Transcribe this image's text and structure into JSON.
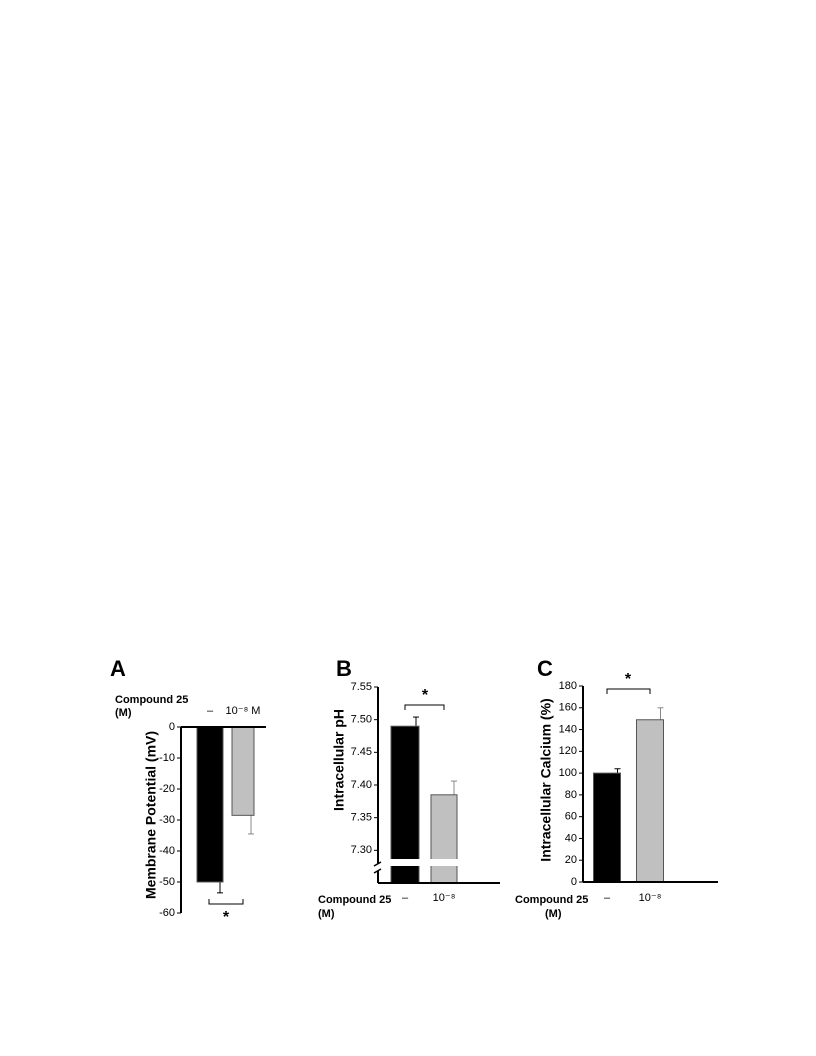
{
  "chart_data": [
    {
      "type": "bar",
      "panel": "A",
      "ylabel": "Membrane Potential (mV)",
      "xlabel_lines": [
        "Compound 25",
        "(M)"
      ],
      "categories": [
        "–",
        "10⁻⁸ M"
      ],
      "values": [
        -50,
        -28.5
      ],
      "errors": [
        3.5,
        6
      ],
      "colors": [
        "#000000",
        "#c0c0c0"
      ],
      "ylim": [
        -60,
        0
      ],
      "yticks": [
        0,
        -10,
        -20,
        -30,
        -40,
        -50,
        -60
      ],
      "annotation": "*"
    },
    {
      "type": "bar",
      "panel": "B",
      "ylabel": "Intracellular pH",
      "xlabel_lines": [
        "Compound 25",
        "(M)"
      ],
      "categories": [
        "–",
        "10⁻⁸"
      ],
      "values": [
        7.49,
        7.385
      ],
      "errors": [
        0.014,
        0.021
      ],
      "colors": [
        "#000000",
        "#c0c0c0"
      ],
      "ylim": [
        7.25,
        7.55
      ],
      "axis_break": true,
      "yticks": [
        {
          "value": 7.3,
          "label": "7.30"
        },
        7.35,
        {
          "value": 7.4,
          "label": "7.40"
        },
        7.45,
        {
          "value": 7.5,
          "label": "7.50"
        },
        7.55
      ],
      "annotation": "*"
    },
    {
      "type": "bar",
      "panel": "C",
      "ylabel": "Intracellular Calcium (%)",
      "xlabel_lines": [
        "Compound 25",
        "(M)"
      ],
      "categories": [
        "–",
        "10⁻⁸"
      ],
      "values": [
        100,
        149
      ],
      "errors": [
        4,
        11
      ],
      "colors": [
        "#000000",
        "#c0c0c0"
      ],
      "ylim": [
        0,
        180
      ],
      "yticks": [
        0,
        20,
        40,
        60,
        80,
        100,
        120,
        140,
        160,
        180
      ],
      "annotation": "*"
    }
  ]
}
